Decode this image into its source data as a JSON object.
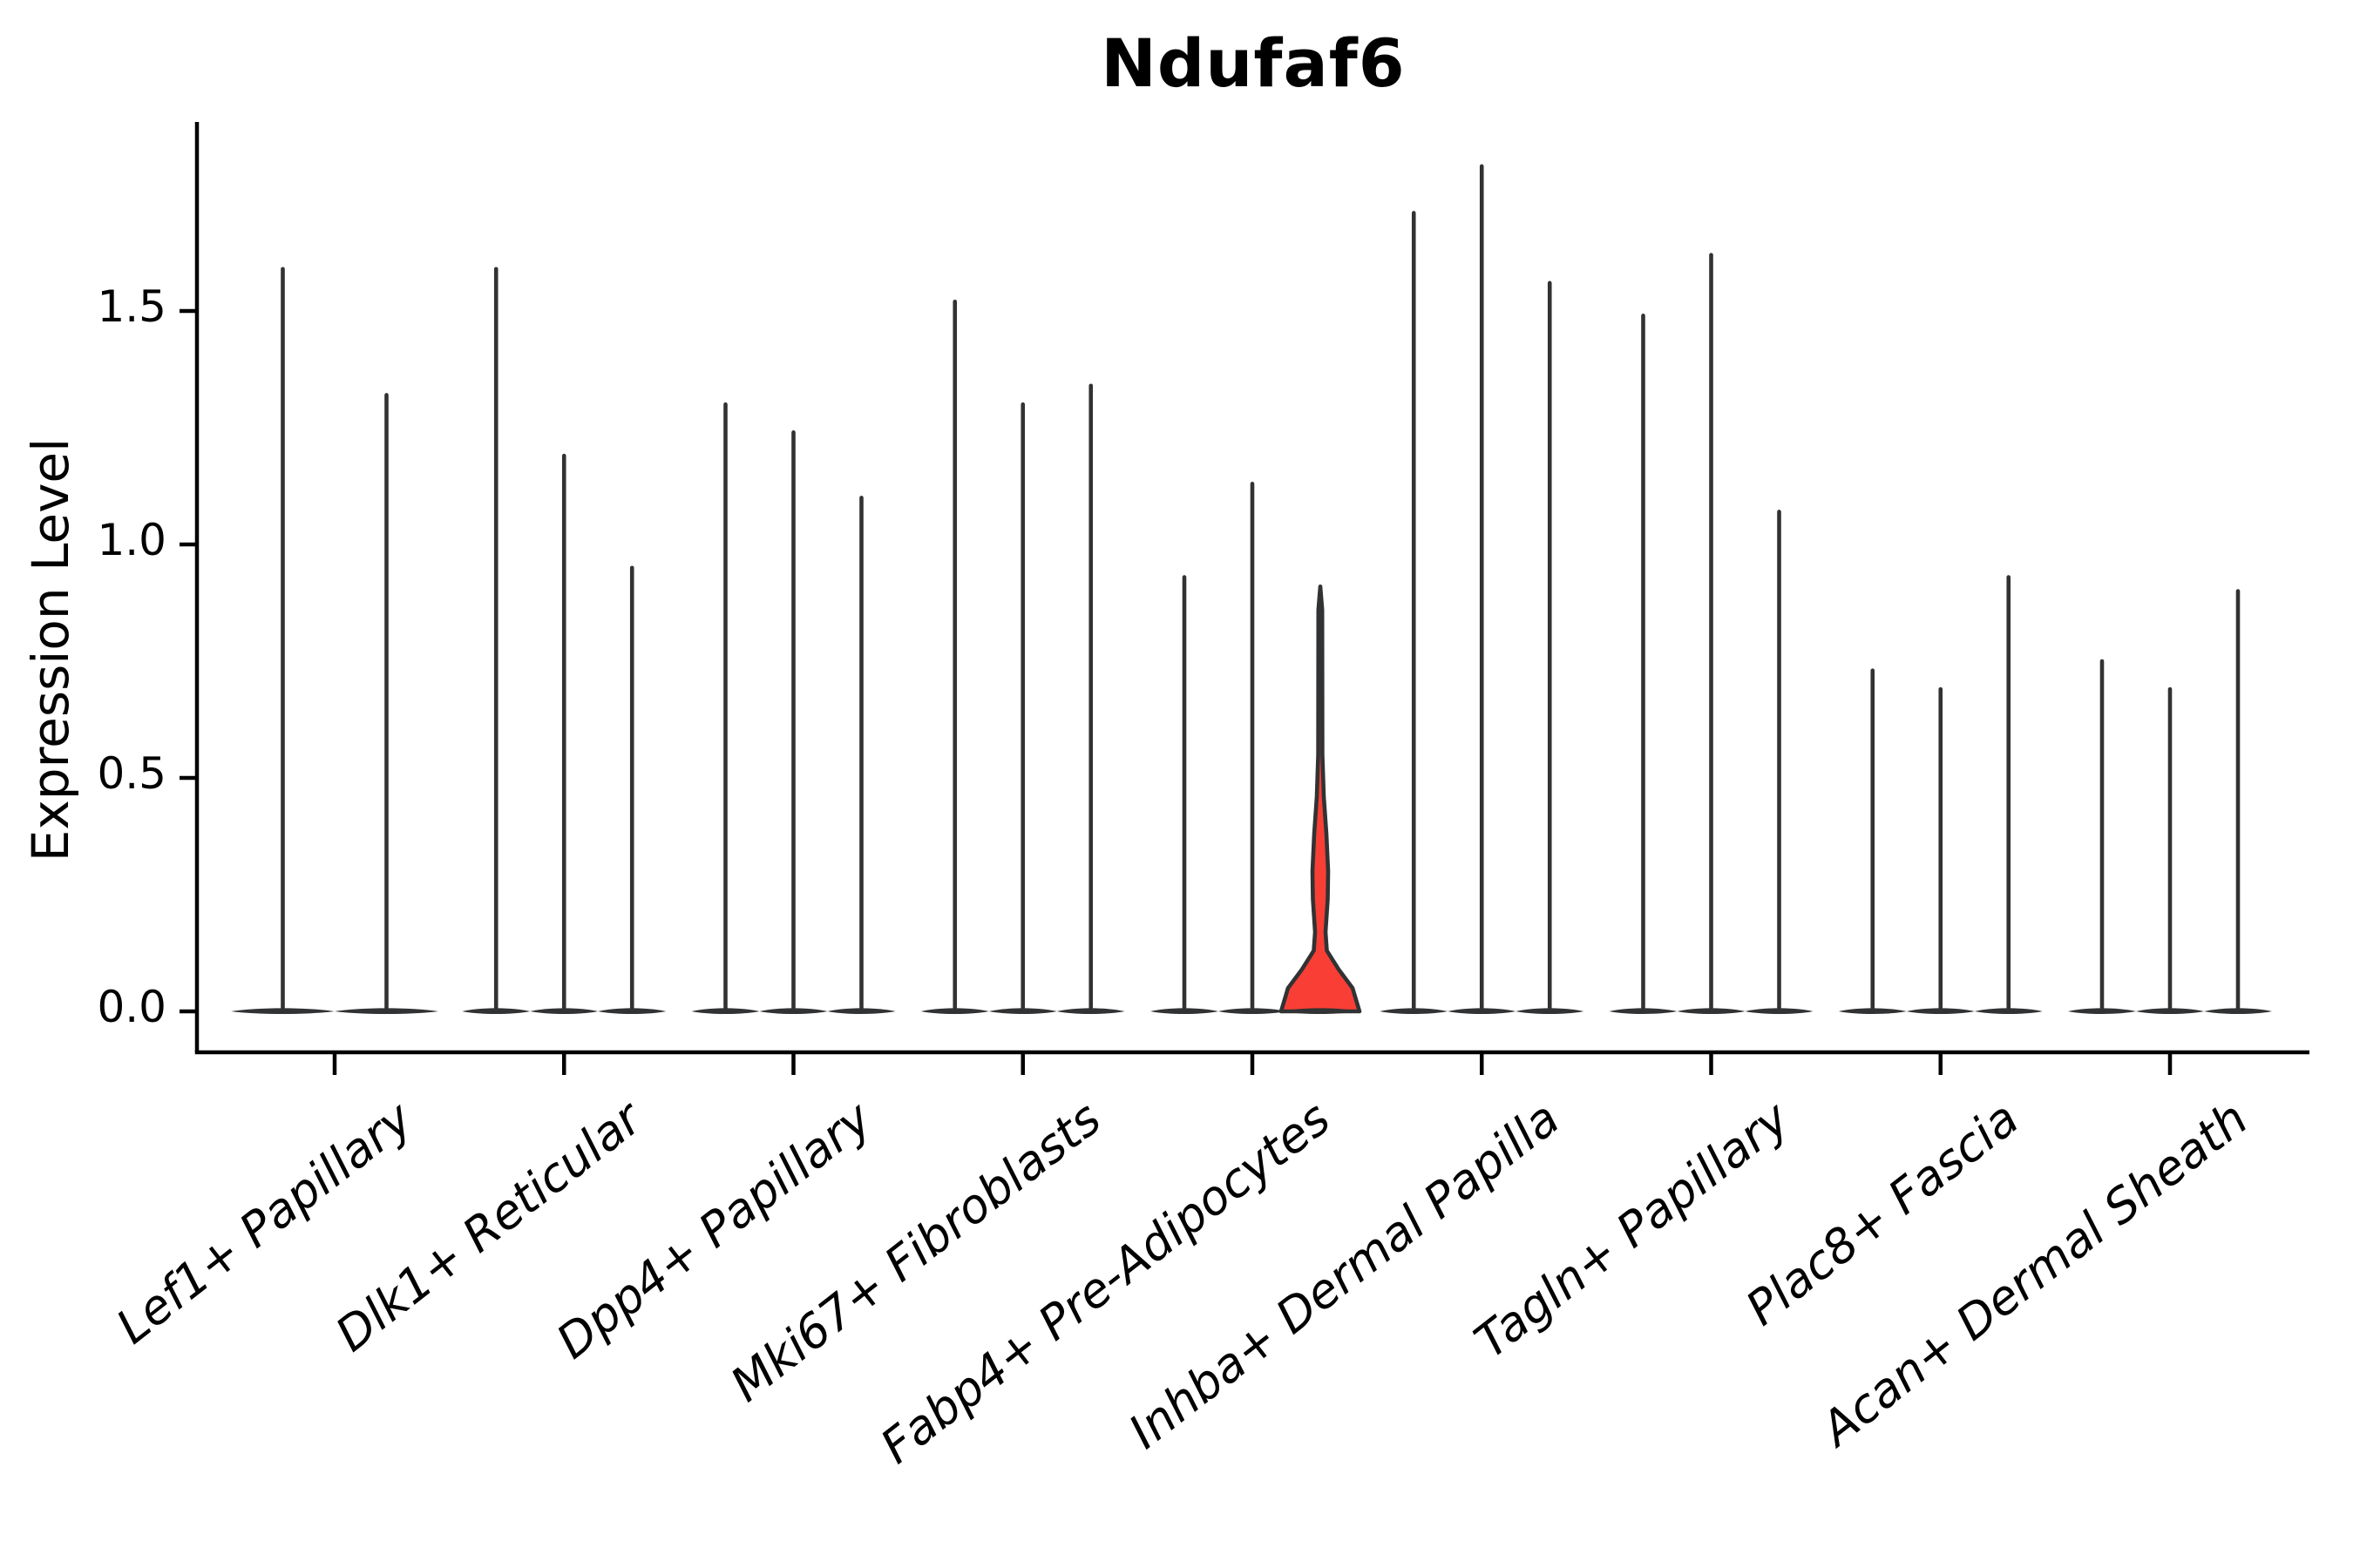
{
  "title": "Ndufaf6",
  "y_axis": {
    "label": "Expression Level",
    "tick_labels": [
      "0.0",
      "0.5",
      "1.0",
      "1.5"
    ],
    "tick_values": [
      0.0,
      0.5,
      1.0,
      1.5
    ]
  },
  "colors": {
    "violin_stroke": "#313234",
    "highlight_fill": "#f93f35",
    "axis": "#000000",
    "text": "#000000",
    "background": "#ffffff"
  },
  "chart_data": {
    "type": "violin",
    "title": "Ndufaf6",
    "xlabel": "",
    "ylabel": "Expression Level",
    "ylim": [
      0,
      1.9
    ],
    "yticks": [
      0.0,
      0.5,
      1.0,
      1.5
    ],
    "grid": false,
    "legend": "none",
    "description": "Single-cell gene expression violin plot; most violins collapse to a flat density lens at 0 with a thin spike to the maximum expression value; one violin (3rd of Fabp4+ Pre-Adipocytes) is highlighted red with visible density bulges.",
    "categories": [
      "Lef1+ Papillary",
      "Dlk1+ Reticular",
      "Dpp4+ Papillary",
      "Mki67+ Fibroblasts",
      "Fabp4+ Pre-Adipocytes",
      "Inhba+ Dermal Papilla",
      "Tagln+ Papillary",
      "Plac8+ Fascia",
      "Acan+ Dermal Sheath"
    ],
    "groups": [
      {
        "category": "Lef1+ Papillary",
        "violin_max": [
          1.59,
          1.32
        ]
      },
      {
        "category": "Dlk1+ Reticular",
        "violin_max": [
          1.59,
          1.19,
          0.95
        ]
      },
      {
        "category": "Dpp4+ Papillary",
        "violin_max": [
          1.3,
          1.24,
          1.1
        ]
      },
      {
        "category": "Mki67+ Fibroblasts",
        "violin_max": [
          1.52,
          1.3,
          1.34
        ]
      },
      {
        "category": "Fabp4+ Pre-Adipocytes",
        "violin_max": [
          0.93,
          1.13,
          0.91
        ]
      },
      {
        "category": "Inhba+ Dermal Papilla",
        "violin_max": [
          1.71,
          1.81,
          1.56
        ]
      },
      {
        "category": "Tagln+ Papillary",
        "violin_max": [
          1.49,
          1.62,
          1.07
        ]
      },
      {
        "category": "Plac8+ Fascia",
        "violin_max": [
          0.73,
          0.69,
          0.93
        ]
      },
      {
        "category": "Acan+ Dermal Sheath",
        "violin_max": [
          0.75,
          0.69,
          0.9
        ]
      }
    ],
    "highlighted_violin": {
      "category": "Fabp4+ Pre-Adipocytes",
      "index_in_group": 2,
      "max": 0.91,
      "fill": "#f93f35",
      "profile_value_halfwidthpx": [
        [
          0.0,
          45.0
        ],
        [
          0.05,
          37.0
        ],
        [
          0.09,
          21.0
        ],
        [
          0.13,
          7.5
        ],
        [
          0.17,
          6.0
        ],
        [
          0.24,
          8.5
        ],
        [
          0.3,
          9.0
        ],
        [
          0.38,
          7.0
        ],
        [
          0.46,
          4.0
        ],
        [
          0.55,
          2.4
        ],
        [
          0.86,
          2.2
        ],
        [
          0.91,
          0.0
        ]
      ]
    }
  }
}
